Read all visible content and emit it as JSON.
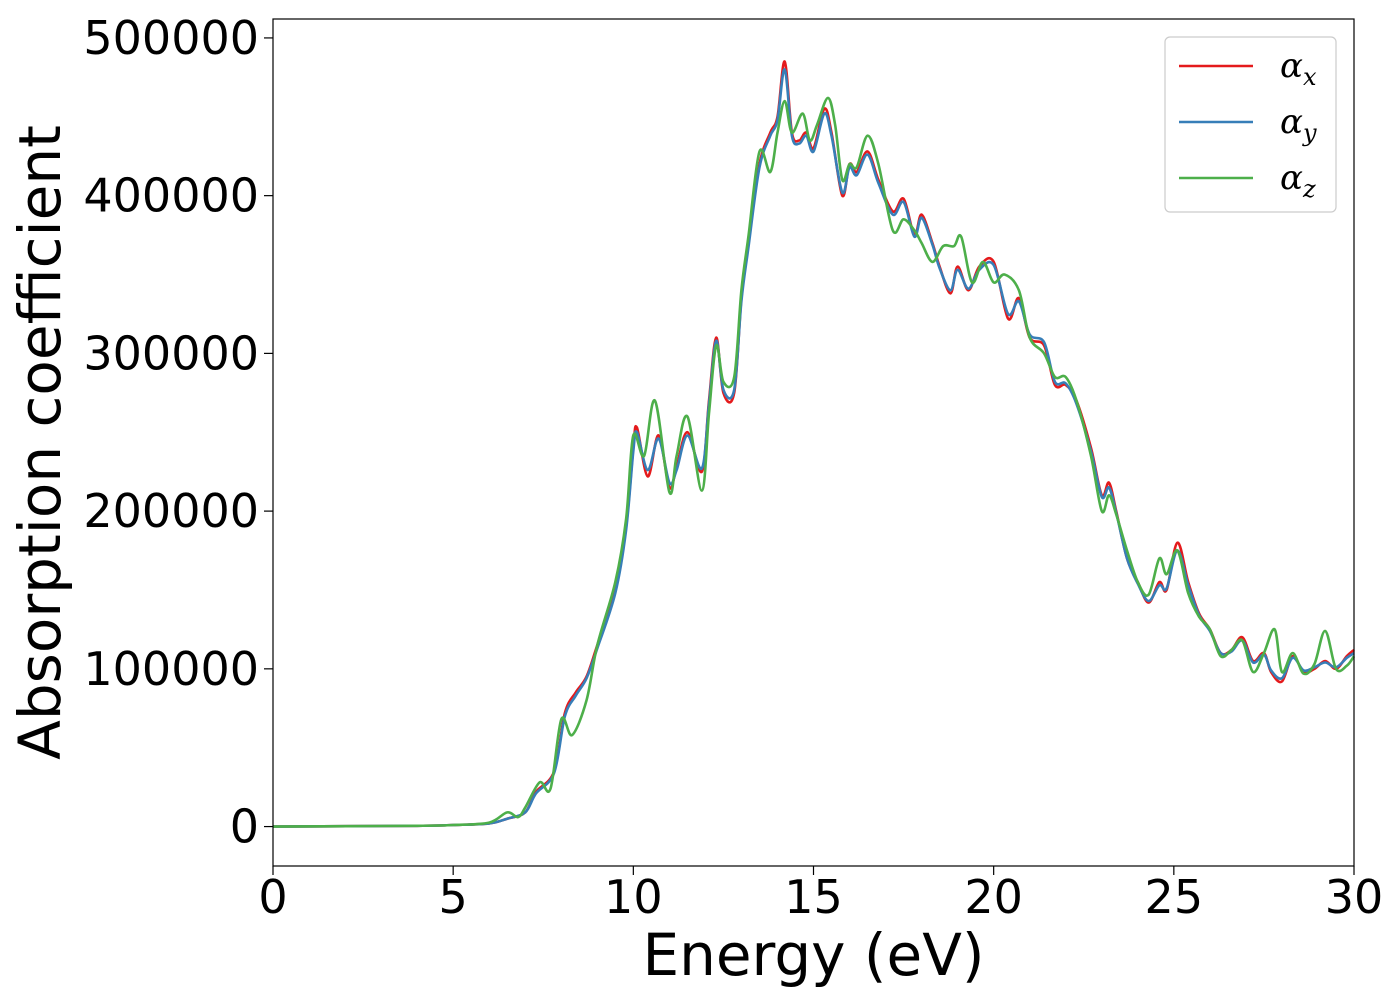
{
  "chart_data": {
    "type": "line",
    "title": "",
    "xlabel": "Energy (eV)",
    "ylabel": "Absorption coefficient",
    "xlim": [
      0,
      30
    ],
    "ylim": [
      -25000,
      512000
    ],
    "xticks": [
      0,
      5,
      10,
      15,
      20,
      25,
      30
    ],
    "xtick_labels": [
      "0",
      "5",
      "10",
      "15",
      "20",
      "25",
      "30"
    ],
    "yticks": [
      0,
      100000,
      200000,
      300000,
      400000,
      500000
    ],
    "ytick_labels": [
      "0",
      "100000",
      "200000",
      "300000",
      "400000",
      "500000"
    ],
    "grid": false,
    "legend_position": "top-right",
    "series": [
      {
        "name": "α_x",
        "label_main": "α",
        "label_sub": "x",
        "color": "#e41a1c",
        "x": [
          0,
          4,
          5,
          6,
          6.5,
          7,
          7.3,
          7.8,
          8.1,
          8.4,
          8.7,
          9.0,
          9.5,
          9.8,
          10.0,
          10.1,
          10.4,
          10.7,
          11.0,
          11.2,
          11.5,
          11.9,
          12.1,
          12.3,
          12.5,
          12.8,
          13.0,
          13.2,
          13.5,
          13.8,
          14.0,
          14.2,
          14.4,
          14.6,
          14.8,
          15.0,
          15.3,
          15.5,
          15.8,
          16.0,
          16.2,
          16.5,
          16.8,
          17.2,
          17.5,
          17.8,
          18.0,
          18.3,
          18.5,
          18.8,
          19.0,
          19.3,
          19.6,
          20.0,
          20.4,
          20.7,
          21.0,
          21.4,
          21.7,
          22.0,
          22.3,
          22.7,
          23.0,
          23.2,
          23.4,
          23.7,
          24.0,
          24.3,
          24.6,
          24.8,
          25.1,
          25.4,
          25.7,
          26.0,
          26.3,
          26.6,
          26.9,
          27.2,
          27.5,
          27.7,
          28.0,
          28.3,
          28.6,
          28.9,
          29.2,
          29.5,
          29.8,
          30.0
        ],
        "y": [
          0,
          500,
          1000,
          2000,
          5000,
          9000,
          22000,
          35000,
          72000,
          85000,
          95000,
          115000,
          150000,
          190000,
          240000,
          253000,
          222000,
          248000,
          215000,
          228000,
          250000,
          225000,
          270000,
          310000,
          275000,
          275000,
          335000,
          370000,
          420000,
          440000,
          450000,
          485000,
          440000,
          435000,
          440000,
          430000,
          455000,
          440000,
          400000,
          420000,
          415000,
          428000,
          410000,
          390000,
          398000,
          375000,
          388000,
          370000,
          355000,
          338000,
          355000,
          340000,
          355000,
          358000,
          322000,
          335000,
          310000,
          305000,
          280000,
          280000,
          270000,
          240000,
          210000,
          218000,
          200000,
          170000,
          155000,
          142000,
          155000,
          150000,
          180000,
          155000,
          135000,
          125000,
          110000,
          112000,
          120000,
          105000,
          110000,
          98000,
          92000,
          108000,
          98000,
          100000,
          105000,
          100000,
          108000,
          112000
        ]
      },
      {
        "name": "α_y",
        "label_main": "α",
        "label_sub": "y",
        "color": "#377eb8",
        "x": [
          0,
          4,
          5,
          6,
          6.5,
          7,
          7.3,
          7.8,
          8.1,
          8.4,
          8.7,
          9.0,
          9.5,
          9.8,
          10.0,
          10.1,
          10.4,
          10.7,
          11.0,
          11.2,
          11.5,
          11.9,
          12.1,
          12.3,
          12.5,
          12.8,
          13.0,
          13.2,
          13.5,
          13.8,
          14.0,
          14.2,
          14.4,
          14.6,
          14.8,
          15.0,
          15.3,
          15.5,
          15.8,
          16.0,
          16.2,
          16.5,
          16.8,
          17.2,
          17.5,
          17.8,
          18.0,
          18.3,
          18.5,
          18.8,
          19.0,
          19.3,
          19.6,
          20.0,
          20.4,
          20.7,
          21.0,
          21.4,
          21.7,
          22.0,
          22.3,
          22.7,
          23.0,
          23.2,
          23.4,
          23.7,
          24.0,
          24.3,
          24.6,
          24.8,
          25.1,
          25.4,
          25.7,
          26.0,
          26.3,
          26.6,
          26.9,
          27.2,
          27.5,
          27.7,
          28.0,
          28.3,
          28.6,
          28.9,
          29.2,
          29.5,
          29.8,
          30.0
        ],
        "y": [
          0,
          500,
          1000,
          2000,
          5000,
          9000,
          21000,
          34000,
          70000,
          83000,
          94000,
          113000,
          148000,
          188000,
          238000,
          250000,
          226000,
          246000,
          218000,
          226000,
          248000,
          227000,
          268000,
          308000,
          277000,
          277000,
          333000,
          368000,
          418000,
          438000,
          448000,
          480000,
          438000,
          433000,
          438000,
          428000,
          452000,
          438000,
          402000,
          418000,
          413000,
          426000,
          408000,
          388000,
          396000,
          374000,
          386000,
          369000,
          354000,
          340000,
          353000,
          341000,
          353000,
          356000,
          325000,
          333000,
          312000,
          307000,
          282000,
          281000,
          268000,
          238000,
          209000,
          215000,
          199000,
          170000,
          154000,
          143000,
          153000,
          151000,
          175000,
          153000,
          134000,
          124000,
          110000,
          111000,
          118000,
          104000,
          109000,
          99000,
          94000,
          107000,
          99000,
          101000,
          104000,
          101000,
          107000,
          110000
        ]
      },
      {
        "name": "α_z",
        "label_main": "α",
        "label_sub": "z",
        "color": "#4daf4a",
        "x": [
          0,
          4,
          5,
          6,
          6.5,
          6.8,
          7.0,
          7.4,
          7.7,
          8.0,
          8.3,
          8.7,
          9.0,
          9.5,
          9.8,
          10.0,
          10.3,
          10.6,
          11.0,
          11.2,
          11.5,
          11.9,
          12.1,
          12.3,
          12.5,
          12.8,
          13.0,
          13.2,
          13.5,
          13.8,
          14.0,
          14.2,
          14.4,
          14.7,
          14.9,
          15.1,
          15.4,
          15.6,
          15.8,
          16.0,
          16.2,
          16.5,
          16.8,
          17.2,
          17.5,
          17.8,
          18.0,
          18.3,
          18.6,
          18.9,
          19.1,
          19.4,
          19.7,
          20.0,
          20.3,
          20.7,
          21.0,
          21.4,
          21.7,
          22.0,
          22.3,
          22.7,
          23.0,
          23.2,
          23.4,
          23.7,
          24.0,
          24.3,
          24.6,
          24.8,
          25.1,
          25.4,
          25.7,
          26.0,
          26.3,
          26.6,
          26.9,
          27.2,
          27.5,
          27.8,
          28.0,
          28.3,
          28.6,
          28.9,
          29.2,
          29.5,
          29.8,
          30.0
        ],
        "y": [
          0,
          500,
          1000,
          2500,
          9000,
          6000,
          12000,
          28000,
          24000,
          68000,
          58000,
          80000,
          115000,
          155000,
          195000,
          248000,
          235000,
          270000,
          212000,
          235000,
          260000,
          213000,
          262000,
          305000,
          282000,
          285000,
          340000,
          375000,
          428000,
          415000,
          440000,
          460000,
          440000,
          452000,
          435000,
          445000,
          462000,
          445000,
          410000,
          420000,
          418000,
          438000,
          420000,
          378000,
          385000,
          378000,
          370000,
          358000,
          368000,
          368000,
          374000,
          345000,
          358000,
          345000,
          350000,
          340000,
          310000,
          300000,
          285000,
          285000,
          270000,
          235000,
          200000,
          210000,
          198000,
          175000,
          155000,
          147000,
          170000,
          160000,
          175000,
          148000,
          133000,
          125000,
          108000,
          112000,
          118000,
          98000,
          110000,
          125000,
          98000,
          110000,
          97000,
          103000,
          124000,
          100000,
          102000,
          108000
        ]
      }
    ]
  }
}
